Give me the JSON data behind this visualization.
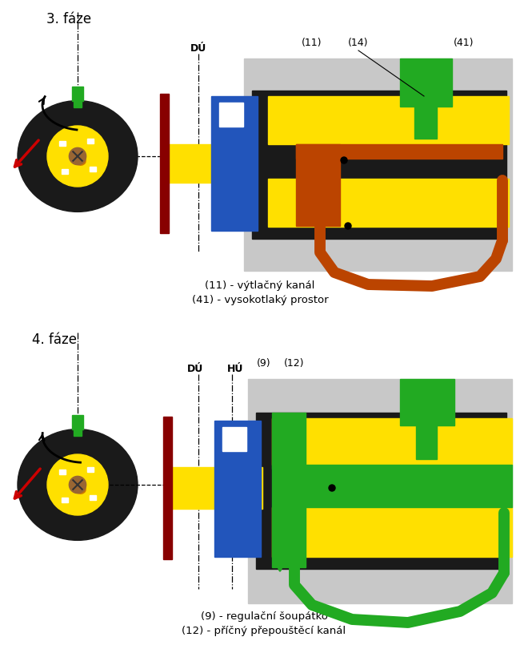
{
  "title1": "3. fáze",
  "title2": "4. fáze",
  "label11": "(11) - výtlačný kanál",
  "label41": "(41) - vysokotlaký prostor",
  "label9": "(9) - regulační šoupátko",
  "label12": "(12) - příčný přepouštěcí kanál",
  "lbl11": "(11)",
  "lbl14": "(14)",
  "lbl41": "(41)",
  "lbl9": "(9)",
  "lbl12": "(12)",
  "lblDU": "DÚ",
  "lblHU": "HÚ",
  "color_yellow": "#FFE000",
  "color_dark": "#1a1a1a",
  "color_blue": "#2255BB",
  "color_green": "#22AA22",
  "color_orange": "#BB4400",
  "color_gray": "#AAAAAA",
  "color_lgray": "#C8C8C8",
  "color_red": "#CC0000",
  "color_bg": "#FFFFFF",
  "color_darkred": "#880000"
}
